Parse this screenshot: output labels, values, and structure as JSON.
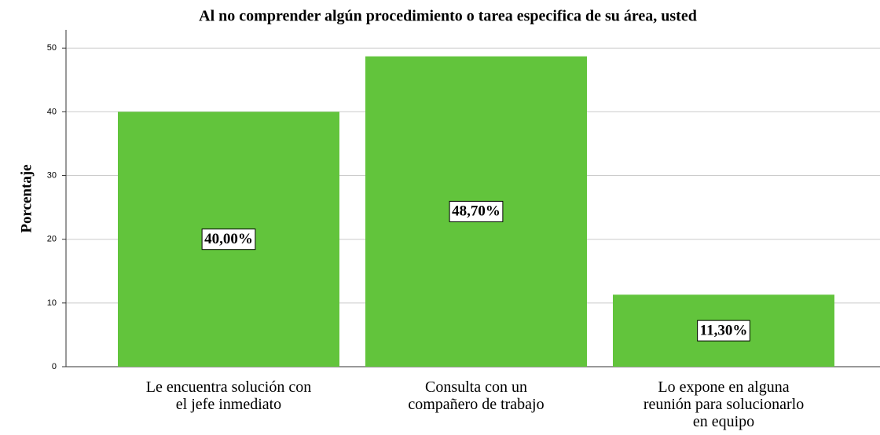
{
  "chart_data": {
    "type": "bar",
    "title": "Al no comprender algún procedimiento o tarea especifica de su área, usted",
    "ylabel": "Porcentaje",
    "categories": [
      [
        "Le encuentra solución con",
        "el jefe inmediato"
      ],
      [
        "Consulta con un",
        "compañero de trabajo"
      ],
      [
        "Lo expone en alguna",
        "reunión para solucionarlo",
        "en equipo"
      ]
    ],
    "values": [
      40.0,
      48.7,
      11.3
    ],
    "value_labels": [
      "40,00%",
      "48,70%",
      "11,30%"
    ],
    "color": "#62c43c",
    "ylim": [
      0,
      52
    ],
    "yticks": [
      0,
      10,
      20,
      30,
      40,
      50
    ],
    "grid": true
  }
}
